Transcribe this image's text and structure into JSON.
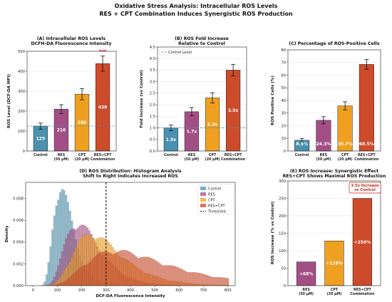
{
  "suptitle": [
    "Oxidative Stress Analysis: Intracellular ROS Levels",
    "RES + CPT Combination Induces Synergistic ROS Production"
  ],
  "colors": {
    "control": "#4a90b0",
    "res": "#a34f86",
    "cpt": "#f0a020",
    "combo": "#cc4b2b",
    "threshold": "#111111",
    "annot_border": "#cc2222"
  },
  "chart_data": [
    {
      "id": "A",
      "type": "bar",
      "title": [
        "(A) Intracellular ROS Levels",
        "DCFH-DA Fluorescence Intensity"
      ],
      "ylabel": "ROS Level (DCF-DA MFI)",
      "categories": [
        [
          "Control"
        ],
        [
          "RES",
          "(50 μM)"
        ],
        [
          "CPT",
          "(20 μM)"
        ],
        [
          "RES+CPT",
          "Combination"
        ]
      ],
      "values": [
        125,
        210,
        285,
        438
      ],
      "errors": [
        15,
        22,
        28,
        38
      ],
      "value_labels": [
        "125",
        "210",
        "285",
        "438"
      ],
      "reference_line": 125,
      "significance": "***",
      "ylim": [
        0,
        500
      ],
      "yticks": [
        "0",
        "100",
        "200",
        "300",
        "400",
        "500"
      ],
      "legend": ""
    },
    {
      "id": "B",
      "type": "bar",
      "title": [
        "(B) ROS Fold Increase",
        "Relative to Control"
      ],
      "ylabel": "Fold Increase (vs Control)",
      "categories": [
        [
          "Control"
        ],
        [
          "RES",
          "(50 μM)"
        ],
        [
          "CPT",
          "(20 μM)"
        ],
        [
          "RES+CPT",
          "Combination"
        ]
      ],
      "values": [
        1.0,
        1.7,
        2.3,
        3.5
      ],
      "errors": [
        0.12,
        0.18,
        0.22,
        0.25
      ],
      "value_labels": [
        "1.0x",
        "1.7x",
        "2.3x",
        "3.5x"
      ],
      "reference_line": 1.0,
      "legend": "Control Level",
      "ylim": [
        0,
        4.5
      ],
      "yticks": [
        "0.0",
        "0.5",
        "1.0",
        "1.5",
        "2.0",
        "2.5",
        "3.0",
        "3.5",
        "4.0",
        "4.5"
      ]
    },
    {
      "id": "C",
      "type": "bar",
      "title": [
        "(C) Percentage of ROS-Positive Cells"
      ],
      "ylabel": "ROS Positive Cells (%)",
      "categories": [
        [
          "Control"
        ],
        [
          "RES",
          "(50 μM)"
        ],
        [
          "CPT",
          "(20 μM)"
        ],
        [
          "RES+CPT",
          "Combination"
        ]
      ],
      "values": [
        8.5,
        24.3,
        35.7,
        68.5
      ],
      "errors": [
        1.5,
        2.8,
        3.2,
        3.8
      ],
      "value_labels": [
        "8.5%",
        "24.3%",
        "35.7%",
        "68.5%"
      ],
      "ylim": [
        0,
        80
      ],
      "yticks": [
        "0",
        "10",
        "20",
        "30",
        "40",
        "50",
        "60",
        "70",
        "80"
      ]
    },
    {
      "id": "D",
      "type": "histogram",
      "title": [
        "(D) ROS Distribution: Histogram Analysis",
        "Shift to Right Indicates Increased ROS"
      ],
      "xlabel": "DCF-DA Fluorescence Intensity",
      "ylabel": "Density",
      "xlim": [
        -30,
        830
      ],
      "ylim": [
        0,
        0.0095
      ],
      "xticks": [
        "0",
        "100",
        "200",
        "300",
        "400",
        "500",
        "600",
        "700",
        "800"
      ],
      "yticks": [
        "0.000",
        "0.002",
        "0.004",
        "0.006",
        "0.008"
      ],
      "threshold": 300,
      "legend": [
        "Control",
        "RES",
        "CPT",
        "RES+CPT",
        "Threshold"
      ],
      "series": [
        {
          "name": "Control",
          "center": 115,
          "spread": 0.34,
          "peak": 0.0089
        },
        {
          "name": "RES",
          "center": 185,
          "spread": 0.38,
          "peak": 0.0056
        },
        {
          "name": "CPT",
          "center": 240,
          "spread": 0.4,
          "peak": 0.0046
        },
        {
          "name": "RES+CPT",
          "center": 340,
          "spread": 0.48,
          "peak": 0.0031
        }
      ]
    },
    {
      "id": "E",
      "type": "bar",
      "title": [
        "(E) ROS Increase: Synergistic Effect",
        "RES+CPT Shows Maximal ROS Production"
      ],
      "ylabel": "ROS Increase (% vs Control)",
      "categories": [
        [
          "RES",
          "(50 μM)"
        ],
        [
          "CPT",
          "(20 μM)"
        ],
        [
          "RES+CPT",
          "Combination"
        ]
      ],
      "values": [
        68,
        128,
        250
      ],
      "value_labels": [
        "+68%",
        "+128%",
        "+250%"
      ],
      "annotation": [
        "3.5x Increase",
        "vs Control"
      ],
      "ylim": [
        0,
        300
      ],
      "yticks": [
        "0",
        "50",
        "100",
        "150",
        "200",
        "250",
        "300"
      ]
    }
  ]
}
